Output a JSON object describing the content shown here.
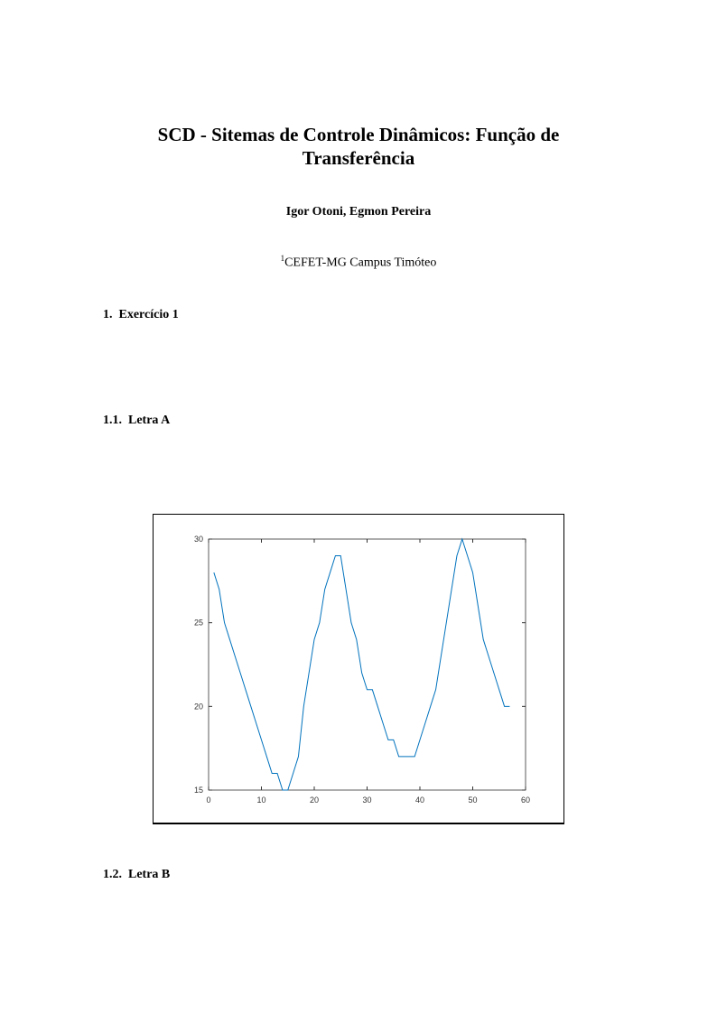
{
  "title": "SCD - Sitemas de Controle Dinâmicos: Função de Transferência",
  "authors": "Igor Otoni, Egmon Pereira",
  "affiliation_mark": "1",
  "affiliation": "CEFET-MG Campus Timóteo",
  "sections": [
    {
      "number": "1.",
      "title": "Exercício 1"
    },
    {
      "number": "1.1.",
      "title": "Letra A"
    },
    {
      "number": "1.2.",
      "title": "Letra B"
    }
  ],
  "chart_data": {
    "type": "line",
    "title": "",
    "xlabel": "",
    "ylabel": "",
    "xlim": [
      0,
      60
    ],
    "ylim": [
      15,
      30
    ],
    "xticks": [
      "0",
      "10",
      "20",
      "30",
      "40",
      "50",
      "60"
    ],
    "yticks": [
      "15",
      "20",
      "25",
      "30"
    ],
    "grid": false,
    "color": "#0072bd",
    "x": [
      1,
      2,
      3,
      4,
      5,
      6,
      7,
      8,
      9,
      10,
      11,
      12,
      13,
      14,
      15,
      16,
      17,
      18,
      19,
      20,
      21,
      22,
      23,
      24,
      25,
      26,
      27,
      28,
      29,
      30,
      31,
      32,
      33,
      34,
      35,
      36,
      37,
      38,
      39,
      40,
      41,
      42,
      43,
      44,
      45,
      46,
      47,
      48,
      49,
      50,
      51,
      52,
      53,
      54,
      55,
      56,
      57
    ],
    "y": [
      28,
      27,
      25,
      24,
      23,
      22,
      21,
      20,
      19,
      18,
      17,
      16,
      16,
      15,
      15,
      16,
      17,
      20,
      22,
      24,
      25,
      27,
      28,
      29,
      29,
      27,
      25,
      24,
      22,
      21,
      21,
      20,
      19,
      18,
      18,
      17,
      17,
      17,
      17,
      18,
      19,
      20,
      21,
      23,
      25,
      27,
      29,
      30,
      29,
      28,
      26,
      24,
      23,
      22,
      21,
      20,
      20
    ]
  }
}
